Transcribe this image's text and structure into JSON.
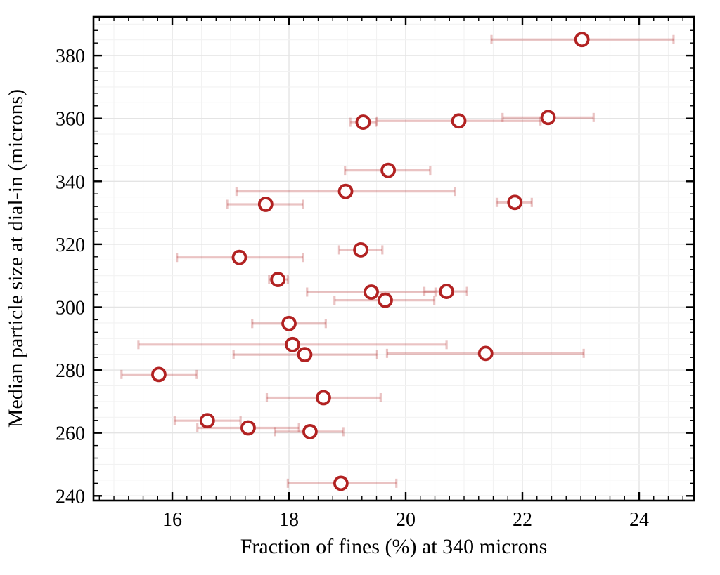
{
  "chart_data": {
    "type": "scatter",
    "title": "",
    "xlabel": "Fraction of fines (%) at 340 microns",
    "ylabel": "Median particle size at dial-in (microns)",
    "xlim": [
      14.65,
      24.94
    ],
    "ylim": [
      238.5,
      392.3
    ],
    "x_major_ticks": [
      16,
      18,
      20,
      22,
      24
    ],
    "x_tick_labels": [
      "16",
      "18",
      "20",
      "22",
      "24"
    ],
    "y_major_ticks": [
      240,
      260,
      280,
      300,
      320,
      340,
      360,
      380
    ],
    "y_tick_labels": [
      "240",
      "260",
      "280",
      "300",
      "320",
      "340",
      "360",
      "380"
    ],
    "x_minor_tick_step": 0.25,
    "y_minor_tick_step": 4,
    "x_grid_step": 0.5,
    "y_grid_step": 5,
    "grid": "on",
    "legend": "none",
    "marker_shape": "open-circle",
    "colors": {
      "marker_edge": "#b22222",
      "marker_fill": "#ffffff",
      "errorbar": "rgba(178,34,34,0.27)",
      "grid_minor": "#f2f2f2",
      "grid_major": "#e4e4e4",
      "axis": "#000000"
    },
    "points": [
      {
        "x": 23.02,
        "y": 385.1,
        "xlo": 21.47,
        "xhi": 24.59
      },
      {
        "x": 19.27,
        "y": 358.8,
        "xlo": 19.05,
        "xhi": 19.49
      },
      {
        "x": 20.91,
        "y": 359.2,
        "xlo": 19.51,
        "xhi": 22.31
      },
      {
        "x": 22.44,
        "y": 360.3,
        "xlo": 21.66,
        "xhi": 23.22
      },
      {
        "x": 19.7,
        "y": 343.5,
        "xlo": 18.96,
        "xhi": 20.42
      },
      {
        "x": 18.97,
        "y": 336.8,
        "xlo": 17.1,
        "xhi": 20.84
      },
      {
        "x": 17.6,
        "y": 332.7,
        "xlo": 16.94,
        "xhi": 18.24
      },
      {
        "x": 21.87,
        "y": 333.3,
        "xlo": 21.56,
        "xhi": 22.16
      },
      {
        "x": 19.23,
        "y": 318.2,
        "xlo": 18.86,
        "xhi": 19.6
      },
      {
        "x": 17.15,
        "y": 315.8,
        "xlo": 16.08,
        "xhi": 18.24
      },
      {
        "x": 17.81,
        "y": 308.8,
        "xlo": 17.66,
        "xhi": 17.98
      },
      {
        "x": 19.41,
        "y": 304.8,
        "xlo": 18.31,
        "xhi": 20.51
      },
      {
        "x": 19.65,
        "y": 302.2,
        "xlo": 18.78,
        "xhi": 20.49
      },
      {
        "x": 20.7,
        "y": 305.0,
        "xlo": 20.32,
        "xhi": 21.05
      },
      {
        "x": 18.0,
        "y": 294.8,
        "xlo": 17.37,
        "xhi": 18.63
      },
      {
        "x": 18.06,
        "y": 288.1,
        "xlo": 15.42,
        "xhi": 20.7
      },
      {
        "x": 18.27,
        "y": 284.9,
        "xlo": 17.05,
        "xhi": 19.51
      },
      {
        "x": 21.37,
        "y": 285.3,
        "xlo": 19.68,
        "xhi": 23.05
      },
      {
        "x": 15.77,
        "y": 278.6,
        "xlo": 15.13,
        "xhi": 16.42
      },
      {
        "x": 18.59,
        "y": 271.2,
        "xlo": 17.62,
        "xhi": 19.57
      },
      {
        "x": 16.6,
        "y": 263.9,
        "xlo": 16.04,
        "xhi": 17.17
      },
      {
        "x": 17.3,
        "y": 261.6,
        "xlo": 16.43,
        "xhi": 18.17
      },
      {
        "x": 18.36,
        "y": 260.4,
        "xlo": 17.76,
        "xhi": 18.93
      },
      {
        "x": 18.89,
        "y": 244.0,
        "xlo": 17.98,
        "xhi": 19.84
      }
    ]
  }
}
